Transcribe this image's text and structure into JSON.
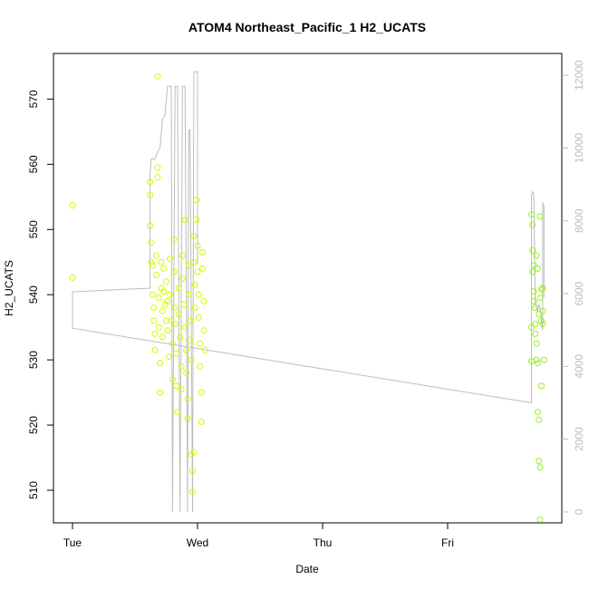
{
  "chart_data": {
    "type": "scatter",
    "title": "ATOM4 Northeast_Pacific_1 H2_UCATS",
    "xlabel": "Date",
    "ylabel": "H2_UCATS",
    "x_tick_labels": [
      "Tue",
      "Wed",
      "Thu",
      "Fri"
    ],
    "y_ticks": [
      510,
      520,
      530,
      540,
      550,
      560,
      570
    ],
    "y_right_ticks": [
      0,
      2000,
      4000,
      6000,
      8000,
      10000,
      12000
    ],
    "xlim": [
      0,
      3.9
    ],
    "ylim": [
      505,
      577
    ],
    "y_right_lim": [
      -300,
      12600
    ],
    "colors": {
      "points_early": "#ccff00",
      "points_late": "#99ee22",
      "line": "#bdbdbd",
      "axis": "#000000",
      "right_axis": "#bdbdbd"
    },
    "series": [
      {
        "kind": "points",
        "color": "#ccff00",
        "points": [
          [
            0.0,
            553.7
          ],
          [
            0.0,
            542.6
          ],
          [
            0.62,
            557.3
          ],
          [
            0.62,
            555.3
          ],
          [
            0.62,
            550.6
          ],
          [
            0.63,
            548.0
          ],
          [
            0.63,
            545.0
          ],
          [
            0.64,
            544.5
          ],
          [
            0.64,
            540.0
          ],
          [
            0.65,
            538.0
          ],
          [
            0.65,
            536.0
          ],
          [
            0.66,
            534.0
          ],
          [
            0.66,
            531.5
          ],
          [
            0.67,
            546.0
          ],
          [
            0.67,
            543.0
          ],
          [
            0.68,
            573.5
          ],
          [
            0.68,
            559.5
          ],
          [
            0.68,
            558.0
          ],
          [
            0.69,
            539.5
          ],
          [
            0.69,
            535.0
          ],
          [
            0.7,
            529.5
          ],
          [
            0.7,
            525.0
          ],
          [
            0.71,
            545.0
          ],
          [
            0.71,
            541.0
          ],
          [
            0.72,
            537.5
          ],
          [
            0.72,
            533.5
          ],
          [
            0.73,
            544.0
          ],
          [
            0.73,
            540.5
          ],
          [
            0.74,
            538.5
          ],
          [
            0.75,
            536.0
          ],
          [
            0.75,
            542.0
          ],
          [
            0.76,
            539.0
          ],
          [
            0.76,
            534.5
          ],
          [
            0.77,
            530.5
          ],
          [
            0.78,
            545.5
          ],
          [
            0.78,
            540.0
          ],
          [
            0.79,
            536.0
          ],
          [
            0.8,
            532.5
          ],
          [
            0.8,
            527.0
          ],
          [
            0.81,
            548.5
          ],
          [
            0.81,
            543.5
          ],
          [
            0.82,
            538.0
          ],
          [
            0.82,
            535.5
          ],
          [
            0.83,
            531.0
          ],
          [
            0.83,
            526.0
          ],
          [
            0.84,
            522.0
          ],
          [
            0.85,
            541.0
          ],
          [
            0.85,
            537.0
          ],
          [
            0.86,
            533.5
          ],
          [
            0.87,
            529.0
          ],
          [
            0.87,
            525.5
          ],
          [
            0.88,
            546.0
          ],
          [
            0.88,
            542.5
          ],
          [
            0.89,
            538.5
          ],
          [
            0.9,
            551.5
          ],
          [
            0.9,
            535.0
          ],
          [
            0.91,
            531.5
          ],
          [
            0.91,
            528.0
          ],
          [
            0.92,
            524.0
          ],
          [
            0.92,
            521.0
          ],
          [
            0.93,
            544.5
          ],
          [
            0.93,
            540.0
          ],
          [
            0.94,
            536.0
          ],
          [
            0.94,
            533.0
          ],
          [
            0.95,
            530.0
          ],
          [
            0.95,
            515.5
          ],
          [
            0.96,
            509.8
          ],
          [
            0.96,
            513.0
          ],
          [
            0.97,
            549.0
          ],
          [
            0.97,
            545.0
          ],
          [
            0.98,
            541.5
          ],
          [
            0.98,
            538.0
          ],
          [
            0.99,
            554.5
          ],
          [
            0.99,
            551.5
          ],
          [
            1.0,
            547.5
          ],
          [
            1.0,
            543.5
          ],
          [
            1.01,
            540.0
          ],
          [
            1.01,
            536.5
          ],
          [
            1.02,
            532.5
          ],
          [
            1.02,
            529.0
          ],
          [
            1.03,
            525.0
          ],
          [
            1.03,
            520.5
          ],
          [
            0.97,
            515.8
          ],
          [
            1.04,
            546.5
          ],
          [
            1.04,
            544.0
          ],
          [
            1.05,
            539.0
          ],
          [
            1.05,
            534.5
          ],
          [
            1.06,
            531.5
          ]
        ]
      },
      {
        "kind": "points",
        "color": "#99ee22",
        "points": [
          [
            3.67,
            552.3
          ],
          [
            3.68,
            550.7
          ],
          [
            3.68,
            546.8
          ],
          [
            3.69,
            544.5
          ],
          [
            3.69,
            540.5
          ],
          [
            3.7,
            538.0
          ],
          [
            3.7,
            534.0
          ],
          [
            3.71,
            532.5
          ],
          [
            3.71,
            530.0
          ],
          [
            3.72,
            529.5
          ],
          [
            3.72,
            522.0
          ],
          [
            3.73,
            520.8
          ],
          [
            3.73,
            514.5
          ],
          [
            3.74,
            513.5
          ],
          [
            3.74,
            505.5
          ],
          [
            3.75,
            526.0
          ],
          [
            3.75,
            536.0
          ],
          [
            3.76,
            537.5
          ],
          [
            3.76,
            541.0
          ],
          [
            3.77,
            530.0
          ],
          [
            3.68,
            543.5
          ],
          [
            3.69,
            539.0
          ],
          [
            3.7,
            535.5
          ],
          [
            3.71,
            546.0
          ],
          [
            3.72,
            544.0
          ],
          [
            3.73,
            537.0
          ],
          [
            3.74,
            539.5
          ],
          [
            3.75,
            540.8
          ],
          [
            3.76,
            535.5
          ],
          [
            3.67,
            535.0
          ],
          [
            3.67,
            529.8
          ],
          [
            3.74,
            552.0
          ]
        ]
      },
      {
        "kind": "line",
        "axis": "right",
        "color": "#bdbdbd",
        "points": [
          [
            0.0,
            6050
          ],
          [
            0.0,
            5050
          ],
          [
            3.67,
            3000
          ],
          [
            3.67,
            8700
          ],
          [
            3.68,
            8800
          ],
          [
            3.69,
            8700
          ],
          [
            3.7,
            5800
          ],
          [
            3.71,
            5600
          ],
          [
            3.72,
            5500
          ],
          [
            3.73,
            5700
          ],
          [
            3.74,
            5600
          ],
          [
            3.76,
            5000
          ],
          [
            3.76,
            8500
          ],
          [
            3.77,
            8400
          ],
          [
            3.77,
            5900
          ]
        ]
      },
      {
        "kind": "line",
        "axis": "right",
        "color": "#bdbdbd",
        "points": [
          [
            0.0,
            6050
          ],
          [
            0.62,
            6150
          ],
          [
            0.62,
            9300
          ],
          [
            0.63,
            9700
          ],
          [
            0.66,
            9700
          ],
          [
            0.68,
            9900
          ],
          [
            0.7,
            10000
          ],
          [
            0.72,
            10800
          ],
          [
            0.74,
            10900
          ],
          [
            0.76,
            11700
          ],
          [
            0.79,
            11700
          ],
          [
            0.8,
            0
          ],
          [
            0.82,
            11700
          ],
          [
            0.84,
            11700
          ],
          [
            0.86,
            0
          ],
          [
            0.88,
            11700
          ],
          [
            0.9,
            11700
          ],
          [
            0.92,
            0
          ],
          [
            0.93,
            10500
          ],
          [
            0.94,
            10500
          ],
          [
            0.96,
            0
          ],
          [
            0.97,
            12100
          ],
          [
            1.0,
            12100
          ],
          [
            1.0,
            6800
          ]
        ]
      }
    ]
  }
}
